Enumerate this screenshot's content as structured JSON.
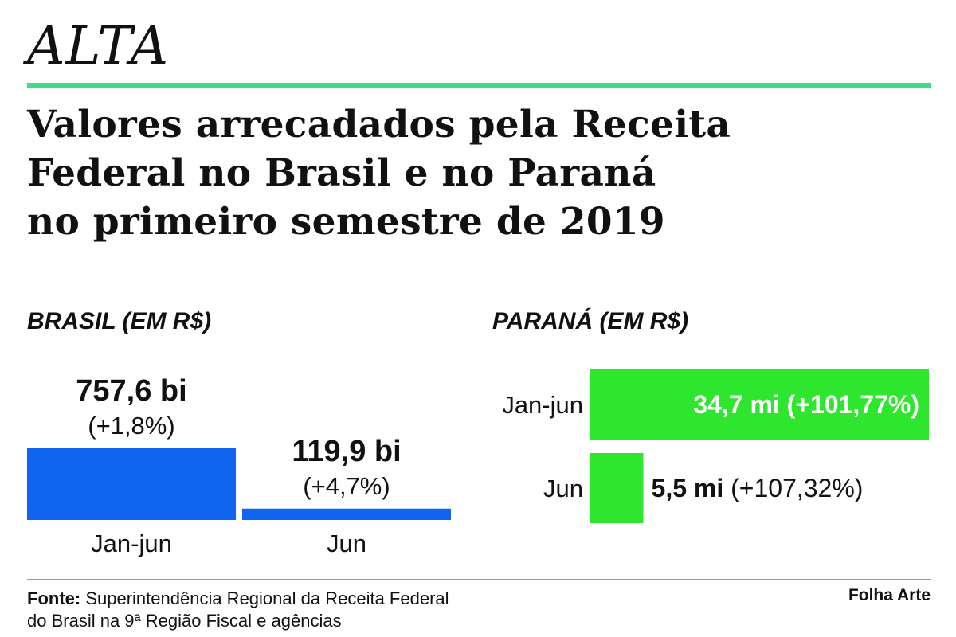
{
  "kicker": "ALTA",
  "headline_lines": [
    "Valores arrecadados pela Receita",
    "Federal no Brasil e no Paraná",
    "no primeiro semestre de 2019"
  ],
  "colors": {
    "accent_rule": "#3ddc84",
    "brasil_bar": "#0f64f0",
    "parana_bar": "#2ee62e"
  },
  "chart_data": [
    {
      "type": "bar",
      "orientation": "vertical",
      "title": "BRASIL (EM R$)",
      "categories": [
        "Jan-jun",
        "Jun"
      ],
      "values": [
        757.6,
        119.9
      ],
      "value_labels": [
        "757,6 bi",
        "119,9 bi"
      ],
      "change_labels": [
        "(+1,8%)",
        "(+4,7%)"
      ]
    },
    {
      "type": "bar",
      "orientation": "horizontal",
      "title": "PARANÁ (EM R$)",
      "categories": [
        "Jan-jun",
        "Jun"
      ],
      "values": [
        34.7,
        5.5
      ],
      "value_labels": [
        "34,7 mi",
        "5,5 mi"
      ],
      "change_labels": [
        "(+101,77%)",
        "(+107,32%)"
      ]
    }
  ],
  "source": {
    "label": "Fonte:",
    "line1": "Superintendência Regional da Receita Federal",
    "line2": "do Brasil na 9ª Região Fiscal e agências"
  },
  "credit": "Folha Arte"
}
